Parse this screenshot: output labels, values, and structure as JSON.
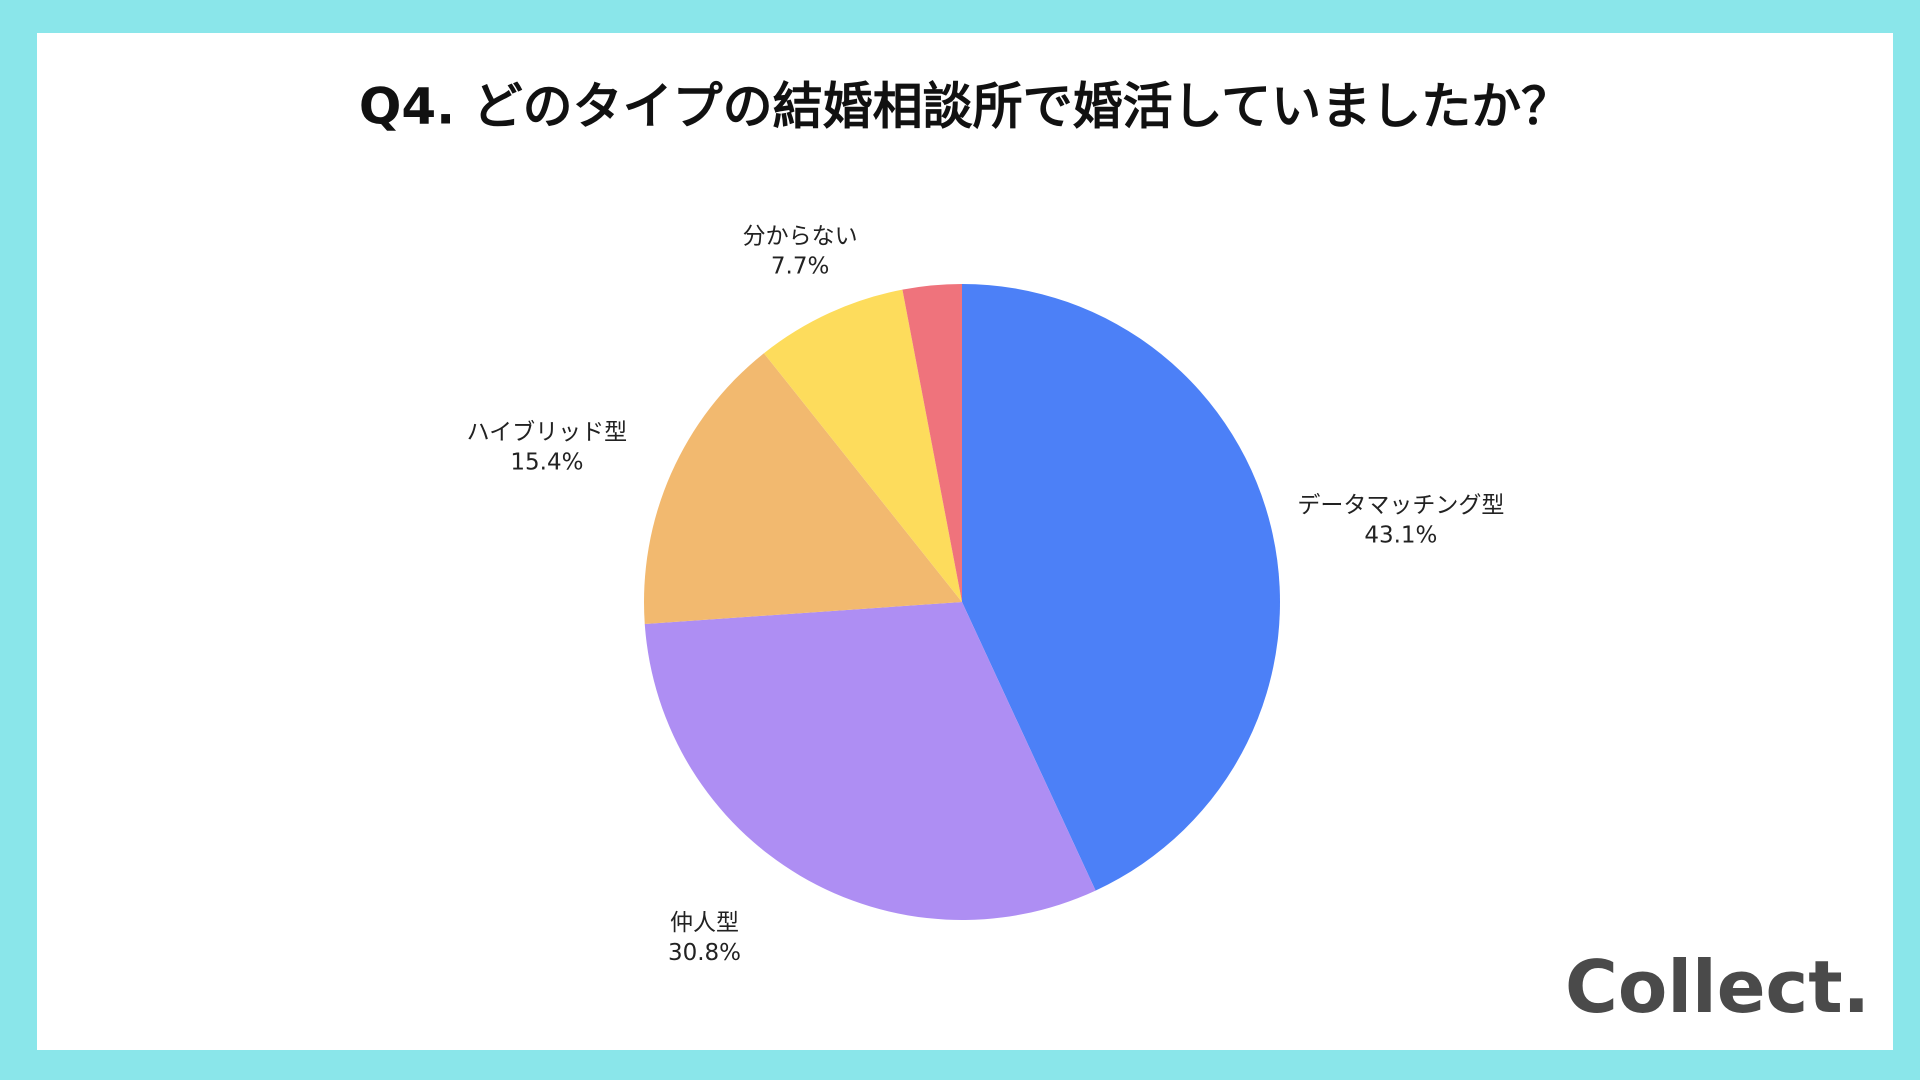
{
  "chart_data": {
    "type": "pie",
    "title": "Q4. どのタイプの結婚相談所で婚活していましたか？",
    "categories": [
      "データマッチング型",
      "仲人型",
      "ハイブリッド型",
      "分からない",
      null
    ],
    "values": [
      43.1,
      30.8,
      15.4,
      7.7,
      3.0
    ],
    "value_labels": [
      "43.1%",
      "30.8%",
      "15.4%",
      "7.7%",
      null
    ],
    "colors": [
      "#4c80f7",
      "#ae8ef3",
      "#f2b96f",
      "#fddc5c",
      "#ef737c"
    ]
  },
  "logo": "Collect."
}
